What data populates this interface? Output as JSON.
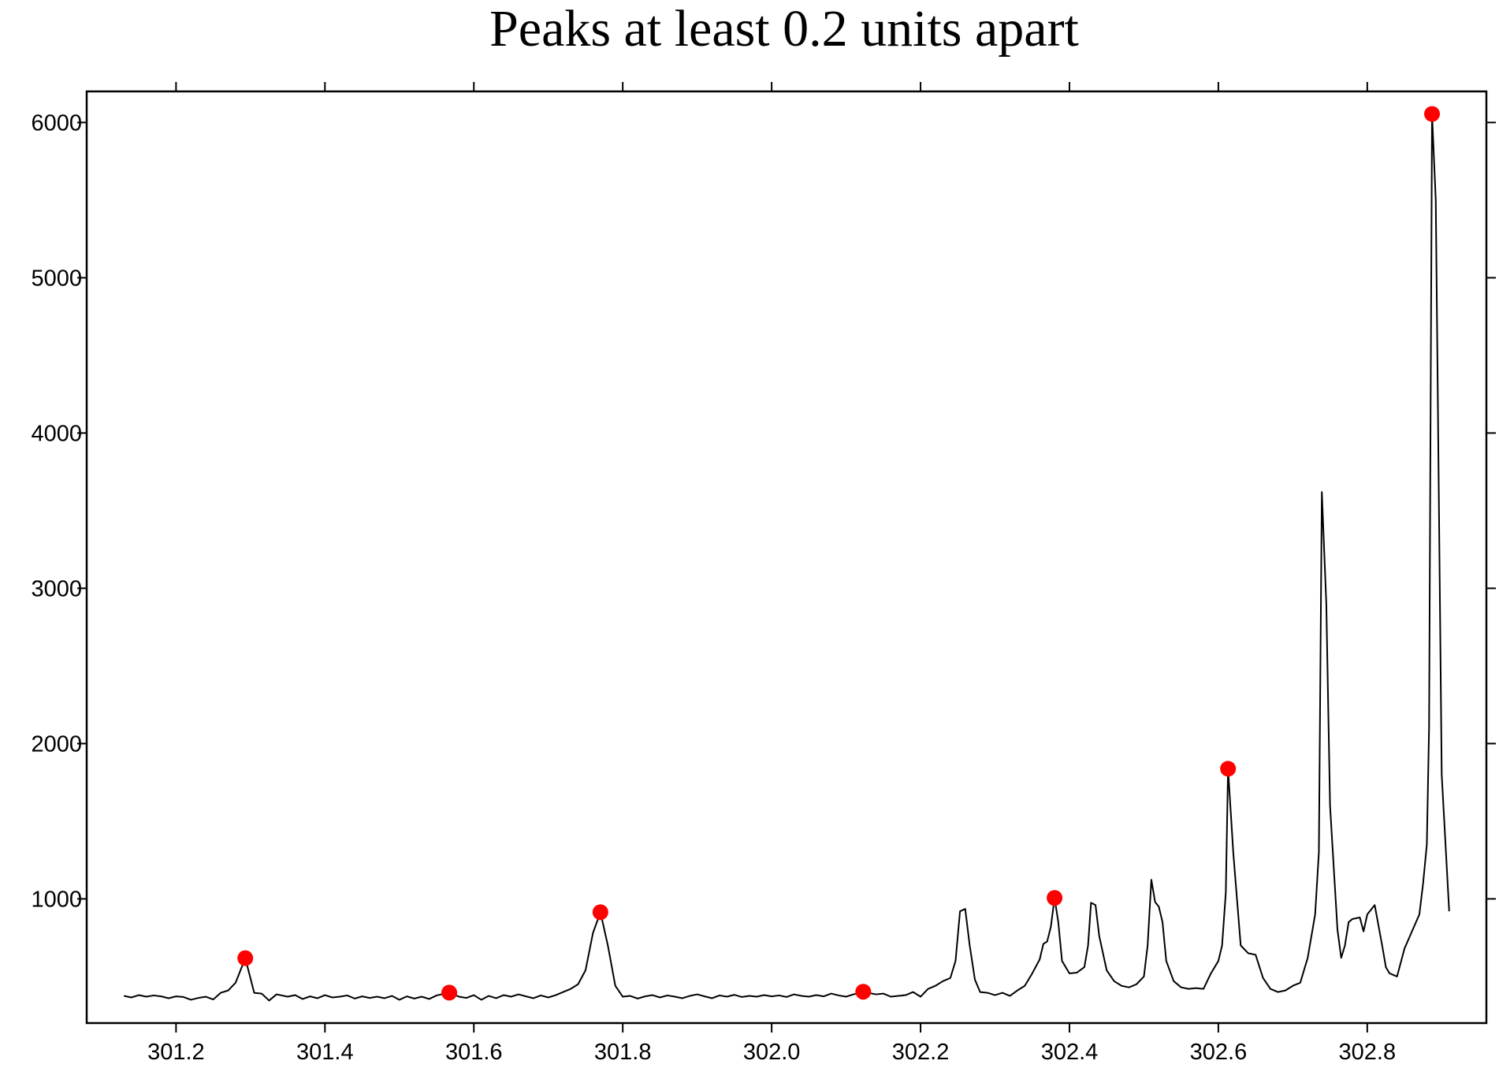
{
  "chart_data": {
    "type": "line",
    "title": "Peaks at least 0.2 units apart",
    "xlim": [
      301.08,
      302.96
    ],
    "ylim": [
      200,
      6200
    ],
    "xticks": [
      301.2,
      301.4,
      301.6,
      301.8,
      {
        "value": 302,
        "label": "302.0"
      },
      302.2,
      302.4,
      302.6,
      302.8
    ],
    "yticks": [
      1000,
      2000,
      3000,
      4000,
      5000,
      6000
    ],
    "grid": false,
    "series": [
      {
        "mode": "line",
        "color": "#000000",
        "x": [
          301.13,
          301.14,
          301.15,
          301.16,
          301.17,
          301.18,
          301.19,
          301.2,
          301.21,
          301.22,
          301.23,
          301.24,
          301.25,
          301.26,
          301.27,
          301.28,
          301.293,
          301.305,
          301.315,
          301.325,
          301.335,
          301.35,
          301.36,
          301.37,
          301.38,
          301.39,
          301.4,
          301.41,
          301.42,
          301.43,
          301.44,
          301.45,
          301.46,
          301.47,
          301.48,
          301.49,
          301.5,
          301.51,
          301.52,
          301.53,
          301.54,
          301.55,
          301.567,
          301.58,
          301.59,
          301.6,
          301.61,
          301.62,
          301.63,
          301.64,
          301.65,
          301.66,
          301.67,
          301.68,
          301.69,
          301.7,
          301.71,
          301.72,
          301.73,
          301.74,
          301.75,
          301.76,
          301.77,
          301.78,
          301.79,
          301.8,
          301.81,
          301.82,
          301.83,
          301.84,
          301.85,
          301.86,
          301.87,
          301.88,
          301.89,
          301.9,
          301.91,
          301.92,
          301.93,
          301.94,
          301.95,
          301.96,
          301.97,
          301.98,
          301.99,
          302.0,
          302.01,
          302.02,
          302.03,
          302.04,
          302.05,
          302.06,
          302.07,
          302.08,
          302.09,
          302.1,
          302.11,
          302.123,
          302.14,
          302.15,
          302.16,
          302.17,
          302.18,
          302.19,
          302.2,
          302.21,
          302.22,
          302.23,
          302.24,
          302.247,
          302.253,
          302.26,
          302.266,
          302.273,
          302.28,
          302.29,
          302.3,
          302.31,
          302.32,
          302.33,
          302.34,
          302.35,
          302.36,
          302.365,
          302.37,
          302.375,
          302.38,
          302.385,
          302.39,
          302.4,
          302.41,
          302.42,
          302.425,
          302.429,
          302.435,
          302.44,
          302.45,
          302.46,
          302.47,
          302.48,
          302.49,
          302.5,
          302.505,
          302.51,
          302.515,
          302.52,
          302.525,
          302.53,
          302.54,
          302.55,
          302.56,
          302.57,
          302.58,
          302.59,
          302.6,
          302.605,
          302.61,
          302.613,
          302.62,
          302.625,
          302.63,
          302.64,
          302.65,
          302.66,
          302.67,
          302.68,
          302.69,
          302.7,
          302.71,
          302.72,
          302.73,
          302.735,
          302.739,
          302.745,
          302.75,
          302.76,
          302.765,
          302.77,
          302.775,
          302.78,
          302.79,
          302.795,
          302.8,
          302.81,
          302.82,
          302.825,
          302.83,
          302.84,
          302.85,
          302.86,
          302.87,
          302.875,
          302.88,
          302.883,
          302.887,
          302.892,
          302.9,
          302.91
        ],
        "values": [
          375,
          365,
          380,
          370,
          378,
          372,
          360,
          372,
          368,
          350,
          362,
          370,
          352,
          395,
          410,
          460,
          618,
          395,
          390,
          345,
          385,
          370,
          380,
          355,
          372,
          360,
          380,
          365,
          370,
          378,
          358,
          372,
          362,
          370,
          360,
          375,
          350,
          372,
          358,
          370,
          355,
          378,
          396,
          370,
          362,
          380,
          350,
          375,
          360,
          380,
          370,
          385,
          372,
          360,
          378,
          365,
          380,
          400,
          420,
          450,
          540,
          780,
          914,
          700,
          440,
          370,
          375,
          358,
          372,
          380,
          365,
          378,
          370,
          360,
          375,
          385,
          372,
          360,
          378,
          370,
          382,
          368,
          375,
          370,
          380,
          372,
          378,
          368,
          385,
          375,
          370,
          380,
          372,
          390,
          378,
          370,
          385,
          402,
          385,
          390,
          370,
          375,
          380,
          400,
          370,
          420,
          440,
          470,
          490,
          600,
          920,
          935,
          700,
          480,
          400,
          395,
          380,
          395,
          375,
          410,
          440,
          520,
          610,
          710,
          725,
          820,
          1006,
          850,
          600,
          520,
          525,
          560,
          700,
          975,
          960,
          760,
          540,
          470,
          440,
          430,
          450,
          500,
          700,
          1123,
          980,
          950,
          850,
          600,
          470,
          430,
          420,
          425,
          420,
          520,
          600,
          700,
          1040,
          1838,
          1300,
          1000,
          700,
          650,
          640,
          490,
          420,
          400,
          410,
          440,
          460,
          620,
          900,
          1300,
          3620,
          2900,
          1600,
          800,
          620,
          700,
          850,
          870,
          880,
          790,
          900,
          960,
          700,
          560,
          520,
          500,
          680,
          790,
          900,
          1100,
          1350,
          2100,
          6055,
          5500,
          1800,
          920
        ]
      },
      {
        "mode": "markers",
        "color": "#ff0000",
        "x": [
          301.293,
          301.567,
          301.77,
          302.123,
          302.38,
          302.613,
          302.887
        ],
        "values": [
          618,
          396,
          914,
          402,
          1006,
          1838,
          6055
        ]
      }
    ]
  }
}
